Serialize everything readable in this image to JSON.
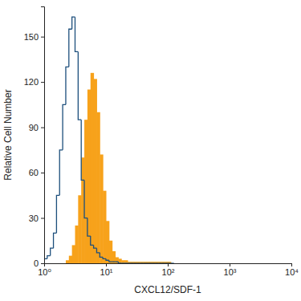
{
  "chart_data": {
    "type": "histogram",
    "x_label": "CXCL12/SDF-1",
    "y_label": "Relative Cell Number",
    "log": "x",
    "bins": [
      1,
      1.122,
      1.259,
      1.413,
      1.585,
      1.778,
      1.995,
      2.239,
      2.512,
      2.818,
      3.162,
      3.548,
      3.981,
      4.467,
      5.012,
      5.623,
      6.31,
      7.079,
      7.943,
      8.913,
      10,
      11.22,
      12.59,
      14.13,
      15.85,
      17.78,
      19.95,
      22.39,
      25.12,
      28.18,
      31.62,
      35.48,
      39.81,
      44.67,
      50.12,
      56.23,
      63.1,
      70.79,
      79.43,
      89.13,
      100,
      112.2,
      125.9
    ],
    "series": [
      {
        "type": "bar",
        "color": "#f7a21b",
        "values": [
          0,
          0,
          0,
          0,
          0,
          0,
          0,
          2,
          5,
          12,
          25,
          45,
          70,
          95,
          115,
          126,
          122,
          100,
          72,
          48,
          28,
          15,
          8,
          4,
          3,
          2,
          2,
          1,
          1,
          1,
          1,
          1,
          1,
          1,
          1,
          1,
          1,
          1,
          1,
          1,
          1,
          0
        ]
      },
      {
        "type": "step",
        "color": "#1d4f7c",
        "values": [
          3,
          5,
          10,
          20,
          45,
          75,
          105,
          130,
          155,
          163,
          140,
          95,
          55,
          30,
          18,
          12,
          10,
          7,
          4,
          3,
          2,
          1,
          1,
          1,
          0,
          0,
          0,
          0,
          0,
          0,
          0,
          0,
          0,
          0,
          0,
          0,
          0,
          0,
          0,
          0,
          0,
          0
        ]
      }
    ],
    "xlim": [
      1,
      10000
    ],
    "xticks": [
      {
        "value": 1,
        "label": "10⁰"
      },
      {
        "value": 10,
        "label": "10¹"
      },
      {
        "value": 100,
        "label": "10²"
      },
      {
        "value": 1000,
        "label": "10³"
      },
      {
        "value": 10000,
        "label": "10⁴"
      }
    ],
    "ylim": [
      0,
      170
    ],
    "yticks": [
      0,
      30,
      60,
      90,
      120,
      150
    ]
  }
}
